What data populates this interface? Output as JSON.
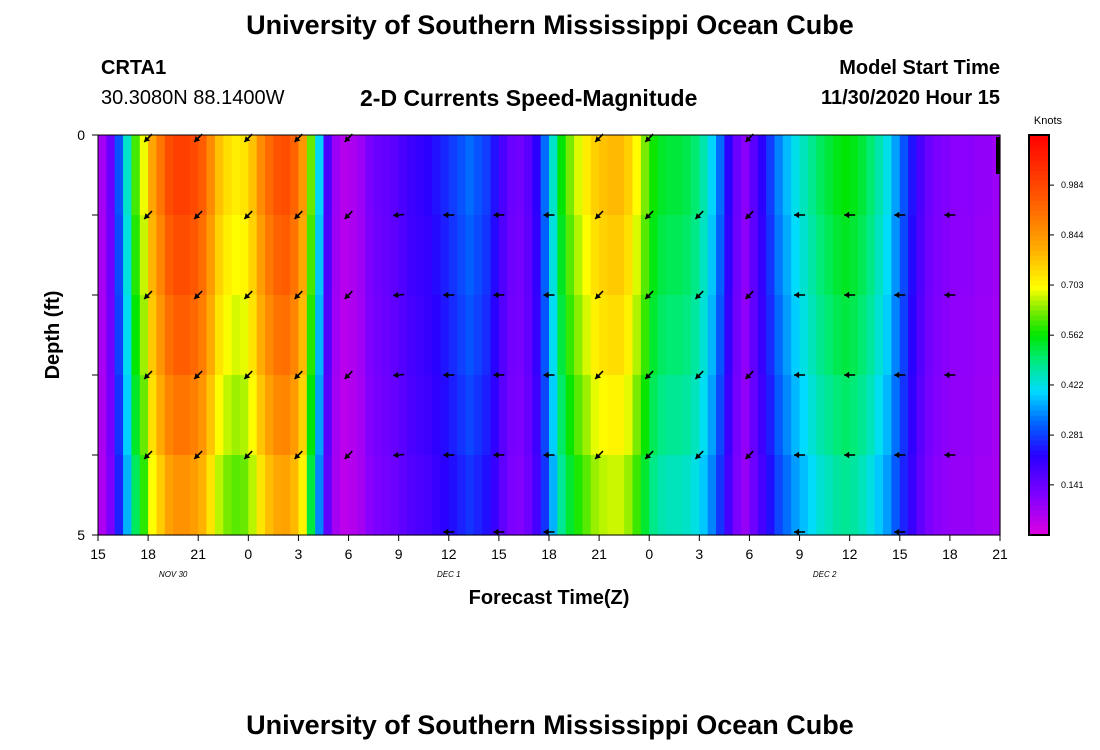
{
  "header": {
    "title": "University of Southern Mississippi Ocean Cube",
    "station_id": "CRTA1",
    "station_coords": "30.3080N 88.1400W",
    "chart_title": "2-D Currents Speed-Magnitude",
    "model_start_label": "Model Start Time",
    "model_start_value": "11/30/2020 Hour 15"
  },
  "footer": {
    "title": "University of Southern Mississippi Ocean Cube"
  },
  "chart_data": {
    "type": "heatmap",
    "title": "2-D Currents Speed-Magnitude",
    "xlabel": "Forecast Time(Z)",
    "ylabel": "Depth (ft)",
    "x_hours_range": [
      0,
      54
    ],
    "y_range": [
      0,
      5
    ],
    "y_tick_labels": [
      "0",
      "5"
    ],
    "x_tick_labels": [
      "15",
      "18",
      "21",
      "0",
      "3",
      "6",
      "9",
      "12",
      "15",
      "18",
      "21",
      "0",
      "3",
      "6",
      "9",
      "12",
      "15",
      "18",
      "21"
    ],
    "date_labels": [
      {
        "text": "NOV 30",
        "hour": 4.5
      },
      {
        "text": "DEC 1",
        "hour": 21
      },
      {
        "text": "DEC 2",
        "hour": 43.5
      }
    ],
    "colorbar": {
      "label": "Knots",
      "range": [
        0,
        1.125
      ],
      "tick_values": [
        0.141,
        0.281,
        0.422,
        0.562,
        0.703,
        0.844,
        0.984
      ],
      "tick_labels": [
        "0.141",
        "0.281",
        "0.422",
        "0.562",
        "0.703",
        "0.844",
        "0.984"
      ]
    },
    "speed_hours": [
      0,
      0.5,
      1,
      1.5,
      2,
      2.5,
      3,
      3.5,
      4,
      4.5,
      5,
      5.5,
      6,
      6.5,
      7,
      7.5,
      8,
      8.5,
      9,
      9.5,
      10,
      10.5,
      11,
      11.5,
      12,
      12.5,
      13,
      13.5,
      14,
      14.5,
      15,
      15.5,
      16,
      16.5,
      17,
      17.5,
      18,
      18.5,
      19,
      19.5,
      20,
      20.5,
      21,
      21.5,
      22,
      22.5,
      23,
      23.5,
      24,
      24.5,
      25,
      25.5,
      26,
      26.5,
      27,
      27.5,
      28,
      28.5,
      29,
      29.5,
      30,
      30.5,
      31,
      31.5,
      32,
      32.5,
      33,
      33.5,
      34,
      34.5,
      35,
      35.5,
      36,
      36.5,
      37,
      37.5,
      38,
      38.5,
      39,
      39.5,
      40,
      40.5,
      41,
      41.5,
      42,
      42.5,
      43,
      43.5,
      44,
      44.5,
      45,
      45.5,
      46,
      46.5,
      47,
      47.5,
      48,
      48.5,
      49,
      49.5,
      50,
      50.5,
      51,
      51.5,
      52,
      52.5,
      53,
      53.5,
      54
    ],
    "speed_knots": [
      0.07,
      0.14,
      0.3,
      0.44,
      0.6,
      0.69,
      0.82,
      0.9,
      0.97,
      1.0,
      1.0,
      0.98,
      0.94,
      0.86,
      0.78,
      0.74,
      0.72,
      0.73,
      0.78,
      0.86,
      0.92,
      0.96,
      0.97,
      0.93,
      0.84,
      0.62,
      0.4,
      0.18,
      0.08,
      0.05,
      0.06,
      0.08,
      0.12,
      0.14,
      0.15,
      0.16,
      0.18,
      0.2,
      0.21,
      0.22,
      0.24,
      0.26,
      0.28,
      0.3,
      0.32,
      0.3,
      0.28,
      0.24,
      0.18,
      0.14,
      0.13,
      0.16,
      0.22,
      0.32,
      0.44,
      0.56,
      0.63,
      0.68,
      0.72,
      0.76,
      0.78,
      0.79,
      0.79,
      0.76,
      0.7,
      0.63,
      0.57,
      0.54,
      0.53,
      0.53,
      0.52,
      0.5,
      0.46,
      0.4,
      0.32,
      0.22,
      0.14,
      0.1,
      0.16,
      0.22,
      0.28,
      0.34,
      0.38,
      0.42,
      0.45,
      0.48,
      0.51,
      0.53,
      0.55,
      0.56,
      0.55,
      0.53,
      0.5,
      0.46,
      0.42,
      0.36,
      0.3,
      0.24,
      0.18,
      0.14,
      0.12,
      0.11,
      0.1,
      0.1,
      0.1,
      0.09,
      0.09,
      0.08,
      0.08
    ],
    "depth_profile_factor": [
      1.0,
      0.97,
      0.94,
      0.9,
      0.85
    ],
    "vector_hours": [
      3,
      6,
      9,
      12,
      15,
      18,
      21,
      24,
      27,
      30,
      33,
      36,
      39,
      42,
      45,
      48,
      51
    ],
    "vector_rows": [
      0,
      1,
      2,
      3,
      4,
      5
    ],
    "vector_direction_deg": [
      135,
      135,
      135,
      135,
      135,
      175,
      180,
      180,
      180,
      135,
      135,
      135,
      135,
      180,
      180,
      180,
      180
    ],
    "vector_visible_rows": [
      [
        0,
        1,
        2,
        3,
        4
      ],
      [
        0,
        1,
        2,
        3,
        4
      ],
      [
        0,
        1,
        2,
        3,
        4
      ],
      [
        0,
        1,
        2,
        3,
        4
      ],
      [
        0,
        1,
        2,
        3,
        4
      ],
      [
        1,
        2,
        3,
        4
      ],
      [
        1,
        2,
        3,
        4,
        5
      ],
      [
        1,
        2,
        3,
        4,
        5
      ],
      [
        1,
        2,
        3,
        4,
        5
      ],
      [
        0,
        1,
        2,
        3,
        4
      ],
      [
        0,
        1,
        2,
        3,
        4
      ],
      [
        1,
        2,
        3,
        4
      ],
      [
        0,
        1,
        2,
        3,
        4
      ],
      [
        1,
        2,
        3,
        4,
        5
      ],
      [
        1,
        2,
        3,
        4
      ],
      [
        1,
        2,
        3,
        4,
        5
      ],
      [
        1,
        2,
        3,
        4
      ]
    ]
  }
}
